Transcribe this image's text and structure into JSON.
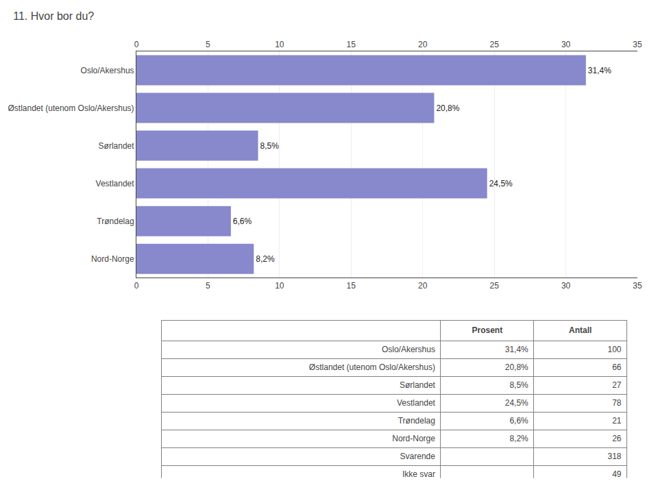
{
  "chart_data": [
    {
      "type": "bar",
      "orientation": "horizontal",
      "title": "11. Hvor bor du?",
      "categories": [
        "Oslo/Akershus",
        "Østlandet (utenom Oslo/Akershus)",
        "Sørlandet",
        "Vestlandet",
        "Trøndelag",
        "Nord-Norge"
      ],
      "values": [
        31.4,
        20.8,
        8.5,
        24.5,
        6.6,
        8.2
      ],
      "value_labels": [
        "31,4%",
        "20,8%",
        "8,5%",
        "24,5%",
        "6,6%",
        "8,2%"
      ],
      "data_labels": true,
      "color": "#8888cc",
      "xlim": [
        0,
        35
      ],
      "xticks": [
        0,
        5,
        10,
        15,
        20,
        25,
        30,
        35
      ],
      "grid": true
    },
    {
      "type": "table",
      "categories": [
        "Oslo/Akershus",
        "Østlandet (utenom Oslo/Akershus)",
        "Sørlandet",
        "Vestlandet",
        "Trøndelag",
        "Nord-Norge",
        "Svarende",
        "Ikke svar"
      ],
      "series": [
        {
          "name": "Prosent",
          "values": [
            31.4,
            20.8,
            8.5,
            24.5,
            6.6,
            8.2,
            null,
            null
          ],
          "value_labels": [
            "31,4%",
            "20,8%",
            "8,5%",
            "24,5%",
            "6,6%",
            "8,2%",
            null,
            null
          ]
        },
        {
          "name": "Antall",
          "values": [
            100,
            66,
            27,
            78,
            21,
            26,
            318,
            49
          ]
        }
      ]
    }
  ]
}
